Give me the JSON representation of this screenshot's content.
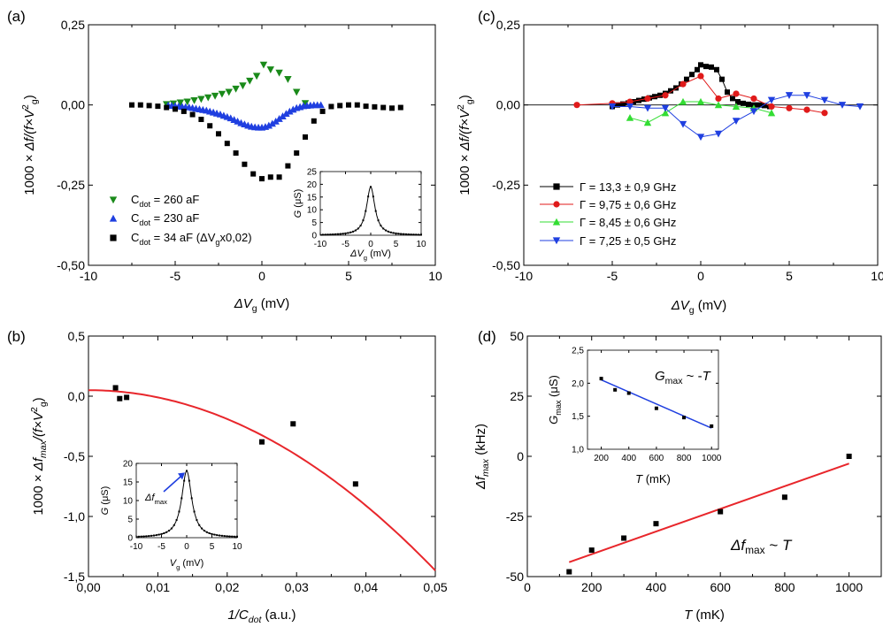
{
  "colors": {
    "black": "#000000",
    "green": "#1a8a1a",
    "blue": "#1f3fe0",
    "red": "#e01a1a",
    "lime": "#33dd33",
    "redline": "#e8262b"
  },
  "chart_data": [
    {
      "panel": "(a)",
      "type": "scatter",
      "xlabel": "ΔV_g (mV)",
      "ylabel": "1000 × Δf/(f×V_g²)",
      "xlim": [
        -10,
        10
      ],
      "ylim": [
        -0.5,
        0.25
      ],
      "xticks": [
        "-10",
        "-5",
        "0",
        "5",
        "10"
      ],
      "yticks": [
        "-0,50",
        "-0,25",
        "0,00",
        "0,25"
      ],
      "legend_position": "bottom-left",
      "series": [
        {
          "name": "C_dot = 260 aF",
          "label_pre": "C",
          "label_sub": "dot",
          "label_post": " = 260 aF",
          "marker": "triangle-down",
          "color": "#1a8a1a",
          "x": [
            -5.5,
            -5.1,
            -4.7,
            -4.3,
            -3.9,
            -3.5,
            -3.1,
            -2.7,
            -2.3,
            -1.9,
            -1.5,
            -1.1,
            -0.7,
            -0.3,
            0.1,
            0.5,
            1.0,
            1.5,
            2.0,
            2.5
          ],
          "y": [
            0.002,
            0.004,
            0.007,
            0.01,
            0.014,
            0.018,
            0.023,
            0.028,
            0.034,
            0.04,
            0.05,
            0.06,
            0.075,
            0.09,
            0.125,
            0.11,
            0.1,
            0.08,
            0.04,
            0.005
          ]
        },
        {
          "name": "C_dot = 230 aF",
          "label_pre": "C",
          "label_sub": "dot",
          "label_post": " = 230 aF",
          "marker": "triangle-up",
          "color": "#1f3fe0",
          "x": [
            -5.4,
            -5.2,
            -5.0,
            -4.8,
            -4.6,
            -4.4,
            -4.2,
            -4.0,
            -3.8,
            -3.6,
            -3.4,
            -3.2,
            -3.0,
            -2.8,
            -2.6,
            -2.4,
            -2.2,
            -2.0,
            -1.8,
            -1.6,
            -1.4,
            -1.2,
            -1.0,
            -0.8,
            -0.6,
            -0.4,
            -0.2,
            0.0,
            0.2,
            0.4,
            0.6,
            0.8,
            1.0,
            1.2,
            1.4,
            1.6,
            1.8,
            2.0,
            2.2,
            2.4,
            2.6,
            2.8,
            3.0,
            3.2,
            3.4
          ],
          "y": [
            -0.001,
            -0.002,
            -0.003,
            -0.004,
            -0.005,
            -0.006,
            -0.007,
            -0.009,
            -0.011,
            -0.013,
            -0.015,
            -0.017,
            -0.02,
            -0.023,
            -0.026,
            -0.029,
            -0.033,
            -0.037,
            -0.041,
            -0.046,
            -0.051,
            -0.056,
            -0.06,
            -0.064,
            -0.067,
            -0.069,
            -0.07,
            -0.07,
            -0.068,
            -0.064,
            -0.058,
            -0.051,
            -0.043,
            -0.035,
            -0.027,
            -0.02,
            -0.014,
            -0.009,
            -0.006,
            -0.003,
            -0.002,
            -0.001,
            0.0,
            0.0,
            0.0
          ]
        },
        {
          "name": "C_dot = 34 aF (ΔV_g x0,02)",
          "label_pre": "C",
          "label_sub": "dot",
          "label_post": " = 34 aF (ΔV",
          "label_sub2": "g",
          "label_post2": "x0,02)",
          "marker": "square",
          "color": "#000000",
          "x": [
            -7.5,
            -7.0,
            -6.5,
            -6.0,
            -5.5,
            -5.0,
            -4.5,
            -4.0,
            -3.5,
            -3.0,
            -2.5,
            -2.0,
            -1.5,
            -1.0,
            -0.5,
            0.0,
            0.5,
            1.0,
            1.5,
            2.0,
            2.5,
            3.0,
            3.5,
            4.0,
            4.5,
            5.0,
            5.5,
            6.0,
            6.5,
            7.0,
            7.5,
            8.0
          ],
          "y": [
            0.0,
            0.0,
            -0.002,
            -0.004,
            -0.008,
            -0.013,
            -0.02,
            -0.03,
            -0.045,
            -0.065,
            -0.09,
            -0.12,
            -0.15,
            -0.185,
            -0.215,
            -0.23,
            -0.225,
            -0.225,
            -0.19,
            -0.15,
            -0.1,
            -0.05,
            -0.02,
            -0.005,
            -0.002,
            0.0,
            0.0,
            -0.004,
            -0.006,
            -0.008,
            -0.01,
            -0.008
          ]
        }
      ],
      "inset": {
        "type": "line",
        "xlabel": "ΔV_g (mV)",
        "ylabel": "G (μS)",
        "xlim": [
          -10,
          10
        ],
        "ylim": [
          0,
          25
        ],
        "xticks": [
          "-10",
          "-5",
          "0",
          "5",
          "10"
        ],
        "yticks": [
          "0",
          "5",
          "10",
          "15",
          "20",
          "25"
        ],
        "peak": 19,
        "width": 1.0
      }
    },
    {
      "panel": "(b)",
      "type": "scatter",
      "xlabel": "1/C_dot (a.u.)",
      "ylabel": "1000 × Δf_max/(f×V_g²)",
      "xlim": [
        0,
        0.05
      ],
      "ylim": [
        -1.5,
        0.5
      ],
      "xticks": [
        "0,00",
        "0,01",
        "0,02",
        "0,03",
        "0,04",
        "0,05"
      ],
      "yticks": [
        "-1,5",
        "-1,0",
        "-0,5",
        "0,0",
        "0,5"
      ],
      "points": {
        "x": [
          0.0039,
          0.0045,
          0.0055,
          0.025,
          0.0295,
          0.0385
        ],
        "y": [
          0.07,
          -0.02,
          -0.01,
          -0.38,
          -0.23,
          -0.73
        ]
      },
      "fit": {
        "form": "a + b*x^2",
        "a": 0.05,
        "b": -600,
        "color": "#e8262b"
      },
      "inset": {
        "type": "line",
        "xlabel": "V_g (mV)",
        "ylabel": "G (μS)",
        "xlim": [
          -10,
          10
        ],
        "ylim": [
          0,
          20
        ],
        "xticks": [
          "-10",
          "-5",
          "0",
          "5",
          "10"
        ],
        "yticks": [
          "0",
          "5",
          "10",
          "15",
          "20"
        ],
        "peak": 18,
        "width": 1.2,
        "annotation": "Δf_max"
      }
    },
    {
      "panel": "(c)",
      "type": "line",
      "xlabel": "ΔV_g (mV)",
      "ylabel": "1000 × Δf/(f×V_g²)",
      "xlim": [
        -10,
        10
      ],
      "ylim": [
        -0.5,
        0.25
      ],
      "xticks": [
        "-10",
        "-5",
        "0",
        "5",
        "10"
      ],
      "yticks": [
        "-0,50",
        "-0,25",
        "0,00",
        "0,25"
      ],
      "legend_position": "bottom-left",
      "series": [
        {
          "name": "Γ = 13,3 ± 0,9 GHz",
          "marker": "square",
          "color": "#000000",
          "x": [
            -5.0,
            -4.7,
            -4.4,
            -4.1,
            -3.8,
            -3.5,
            -3.2,
            -2.9,
            -2.6,
            -2.3,
            -2.0,
            -1.7,
            -1.4,
            -1.1,
            -0.8,
            -0.5,
            -0.2,
            0.0,
            0.3,
            0.6,
            0.9,
            1.2,
            1.5,
            1.8,
            2.1,
            2.4,
            2.7,
            3.0,
            3.3,
            3.6,
            3.9
          ],
          "y": [
            -0.005,
            0.0,
            0.003,
            0.006,
            0.01,
            0.014,
            0.018,
            0.022,
            0.026,
            0.03,
            0.036,
            0.044,
            0.053,
            0.065,
            0.08,
            0.095,
            0.11,
            0.125,
            0.12,
            0.118,
            0.11,
            0.08,
            0.04,
            0.02,
            0.01,
            0.005,
            0.002,
            0.0,
            0.0,
            -0.002,
            -0.005
          ]
        },
        {
          "name": "Γ = 9,75 ± 0,6 GHz",
          "marker": "circle",
          "color": "#e01a1a",
          "x": [
            -7.0,
            -5.0,
            -4.0,
            -3.0,
            -2.0,
            -1.0,
            0.0,
            1.0,
            2.0,
            3.0,
            4.0,
            5.0,
            6.0,
            7.0
          ],
          "y": [
            0.0,
            0.005,
            0.01,
            0.02,
            0.03,
            0.065,
            0.09,
            0.02,
            0.035,
            0.02,
            -0.005,
            -0.01,
            -0.015,
            -0.025
          ]
        },
        {
          "name": "Γ = 8,45 ± 0,6 GHz",
          "marker": "triangle-up",
          "color": "#33dd33",
          "x": [
            -4.0,
            -3.0,
            -2.0,
            -1.0,
            0.0,
            1.0,
            2.0,
            3.0,
            4.0
          ],
          "y": [
            -0.04,
            -0.055,
            -0.025,
            0.01,
            0.01,
            0.0,
            -0.005,
            -0.01,
            -0.025
          ]
        },
        {
          "name": "Γ = 7,25 ± 0,5 GHz",
          "marker": "triangle-down",
          "color": "#1f3fe0",
          "x": [
            -5.0,
            -4.0,
            -3.0,
            -2.0,
            -1.0,
            0.0,
            1.0,
            2.0,
            3.0,
            4.0,
            5.0,
            6.0,
            7.0,
            8.0,
            9.0
          ],
          "y": [
            -0.005,
            -0.005,
            -0.01,
            -0.01,
            -0.06,
            -0.1,
            -0.09,
            -0.05,
            -0.02,
            0.015,
            0.03,
            0.03,
            0.015,
            0.0,
            -0.005
          ]
        }
      ]
    },
    {
      "panel": "(d)",
      "type": "scatter",
      "xlabel": "T (mK)",
      "ylabel": "Δf_max (kHz)",
      "xlim": [
        0,
        1100
      ],
      "ylim": [
        -50,
        50
      ],
      "xticks": [
        "0",
        "200",
        "400",
        "600",
        "800",
        "1000"
      ],
      "yticks": [
        "-50",
        "-25",
        "0",
        "25",
        "50"
      ],
      "points": {
        "x": [
          130,
          200,
          300,
          400,
          600,
          800,
          1000
        ],
        "y": [
          -48,
          -39,
          -34,
          -28,
          -23,
          -17,
          0
        ]
      },
      "fit": {
        "x0": 130,
        "y0": -44,
        "x1": 1000,
        "y1": -3,
        "color": "#e8262b"
      },
      "annotation": "Δf_max ~ T",
      "inset": {
        "type": "scatter",
        "xlabel": "T (mK)",
        "ylabel": "G_max (μS)",
        "xlim": [
          100,
          1050
        ],
        "ylim": [
          1.0,
          2.5
        ],
        "xticks": [
          "200",
          "400",
          "600",
          "800",
          "1000"
        ],
        "yticks": [
          "1,0",
          "1,5",
          "2,0",
          "2,5"
        ],
        "points": {
          "x": [
            200,
            300,
            400,
            600,
            800,
            1000
          ],
          "y": [
            2.07,
            1.9,
            1.85,
            1.62,
            1.48,
            1.35
          ]
        },
        "fit": {
          "x0": 200,
          "y0": 2.05,
          "x1": 1000,
          "y1": 1.32,
          "color": "#1f3fe0"
        },
        "annotation": "G_max ~ -T"
      }
    }
  ]
}
